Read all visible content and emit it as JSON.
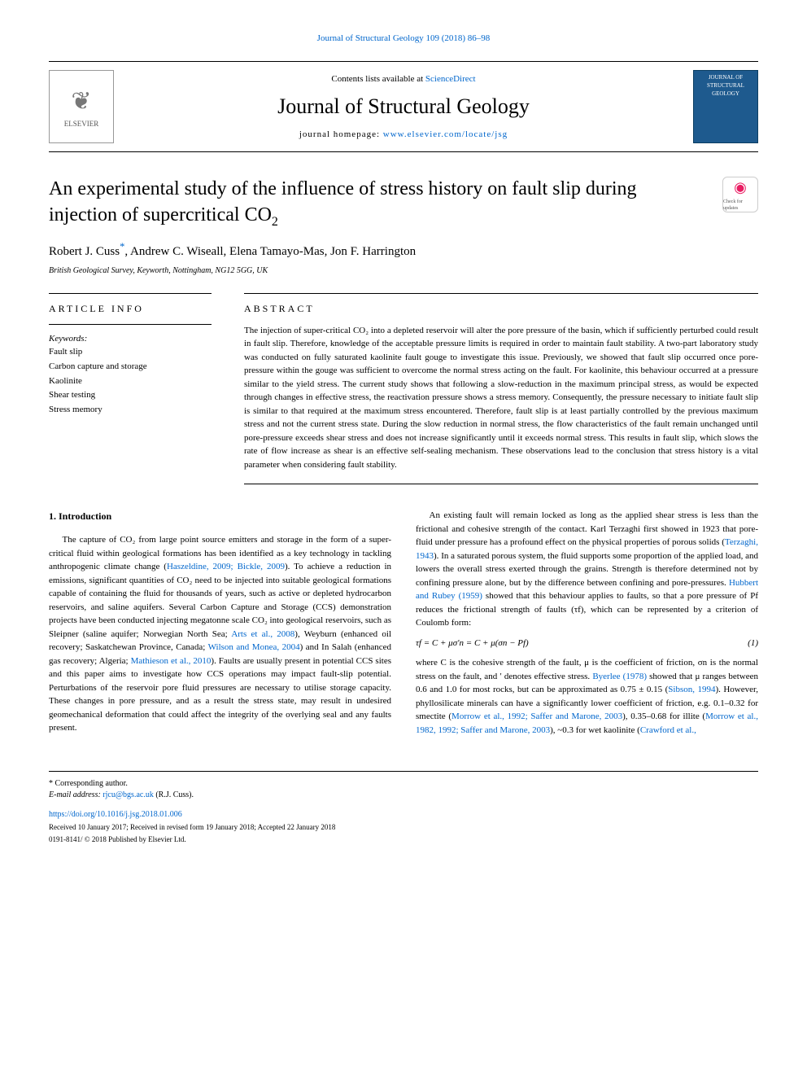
{
  "journal_ref": "Journal of Structural Geology 109 (2018) 86–98",
  "header": {
    "contents_prefix": "Contents lists available at ",
    "contents_link": "ScienceDirect",
    "journal_title": "Journal of Structural Geology",
    "homepage_prefix": "journal homepage: ",
    "homepage_link": "www.elsevier.com/locate/jsg",
    "publisher_name": "ELSEVIER",
    "cover_text": "JOURNAL OF STRUCTURAL GEOLOGY"
  },
  "article": {
    "title_pre": "An experimental study of the influence of stress history on fault slip during injection of supercritical CO",
    "title_sub": "2",
    "check_updates": "Check for updates",
    "authors": "Robert J. Cuss",
    "authors_sup": "*",
    "authors_rest": ", Andrew C. Wiseall, Elena Tamayo-Mas, Jon F. Harrington",
    "affiliation": "British Geological Survey, Keyworth, Nottingham, NG12 5GG, UK"
  },
  "info": {
    "heading": "ARTICLE INFO",
    "keywords_label": "Keywords:",
    "keywords": [
      "Fault slip",
      "Carbon capture and storage",
      "Kaolinite",
      "Shear testing",
      "Stress memory"
    ]
  },
  "abstract": {
    "heading": "ABSTRACT",
    "text": "The injection of super-critical CO₂ into a depleted reservoir will alter the pore pressure of the basin, which if sufficiently perturbed could result in fault slip. Therefore, knowledge of the acceptable pressure limits is required in order to maintain fault stability. A two-part laboratory study was conducted on fully saturated kaolinite fault gouge to investigate this issue. Previously, we showed that fault slip occurred once pore-pressure within the gouge was sufficient to overcome the normal stress acting on the fault. For kaolinite, this behaviour occurred at a pressure similar to the yield stress. The current study shows that following a slow-reduction in the maximum principal stress, as would be expected through changes in effective stress, the reactivation pressure shows a stress memory. Consequently, the pressure necessary to initiate fault slip is similar to that required at the maximum stress encountered. Therefore, fault slip is at least partially controlled by the previous maximum stress and not the current stress state. During the slow reduction in normal stress, the flow characteristics of the fault remain unchanged until pore-pressure exceeds shear stress and does not increase significantly until it exceeds normal stress. This results in fault slip, which slows the rate of flow increase as shear is an effective self-sealing mechanism. These observations lead to the conclusion that stress history is a vital parameter when considering fault stability."
  },
  "body": {
    "section_num": "1. Introduction",
    "col1": {
      "p1_a": "The capture of CO₂ from large point source emitters and storage in the form of a super-critical fluid within geological formations has been identified as a key technology in tackling anthropogenic climate change (",
      "p1_link1": "Haszeldine, 2009; Bickle, 2009",
      "p1_b": "). To achieve a reduction in emissions, significant quantities of CO₂ need to be injected into suitable geological formations capable of containing the fluid for thousands of years, such as active or depleted hydrocarbon reservoirs, and saline aquifers. Several Carbon Capture and Storage (CCS) demonstration projects have been conducted injecting megatonne scale CO₂ into geological reservoirs, such as Sleipner (saline aquifer; Norwegian North Sea; ",
      "p1_link2": "Arts et al., 2008",
      "p1_c": "), Weyburn (enhanced oil recovery; Saskatchewan Province, Canada; ",
      "p1_link3": "Wilson and Monea, 2004",
      "p1_d": ") and In Salah (enhanced gas recovery; Algeria; ",
      "p1_link4": "Mathieson et al., 2010",
      "p1_e": "). Faults are usually present in potential CCS sites and this paper aims to investigate how CCS operations may impact fault-slip potential. Perturbations of the reservoir pore fluid pressures are necessary to utilise storage capacity. These changes in pore pressure, and as a result the stress state, may result in undesired geomechanical deformation that could affect the integrity of the overlying seal and any faults present."
    },
    "col2": {
      "p1_a": "An existing fault will remain locked as long as the applied shear stress is less than the frictional and cohesive strength of the contact. Karl Terzaghi first showed in 1923 that pore-fluid under pressure has a profound effect on the physical properties of porous solids (",
      "p1_link1": "Terzaghi, 1943",
      "p1_b": "). In a saturated porous system, the fluid supports some proportion of the applied load, and lowers the overall stress exerted through the grains. Strength is therefore determined not by confining pressure alone, but by the difference between confining and pore-pressures. ",
      "p1_link2": "Hubbert and Rubey (1959)",
      "p1_c": " showed that this behaviour applies to faults, so that a pore pressure of Pf reduces the frictional strength of faults (τf), which can be represented by a criterion of Coulomb form:",
      "eq": "τf = C + μσ′n = C + μ(σn − Pf)",
      "eq_num": "(1)",
      "p2_a": "where C is the cohesive strength of the fault, μ is the coefficient of friction, σn is the normal stress on the fault, and ′ denotes effective stress. ",
      "p2_link1": "Byerlee (1978)",
      "p2_b": " showed that μ ranges between 0.6 and 1.0 for most rocks, but can be approximated as 0.75 ± 0.15 (",
      "p2_link2": "Sibson, 1994",
      "p2_c": "). However, phyllosilicate minerals can have a significantly lower coefficient of friction, e.g. 0.1–0.32 for smectite (",
      "p2_link3": "Morrow et al., 1992; Saffer and Marone, 2003",
      "p2_d": "), 0.35–0.68 for illite (",
      "p2_link4": "Morrow et al., 1982, 1992; Saffer and Marone, 2003",
      "p2_e": "), ~0.3 for wet kaolinite (",
      "p2_link5": "Crawford et al.,"
    }
  },
  "footer": {
    "corr": "* Corresponding author.",
    "email_label": "E-mail address: ",
    "email": "rjcu@bgs.ac.uk",
    "email_suffix": " (R.J. Cuss).",
    "doi": "https://doi.org/10.1016/j.jsg.2018.01.006",
    "received": "Received 10 January 2017; Received in revised form 19 January 2018; Accepted 22 January 2018",
    "copyright": "0191-8141/ © 2018 Published by Elsevier Ltd."
  },
  "colors": {
    "link": "#0066cc",
    "text": "#000000",
    "cover_bg": "#1e5a8e",
    "check_mark": "#e91e63"
  }
}
